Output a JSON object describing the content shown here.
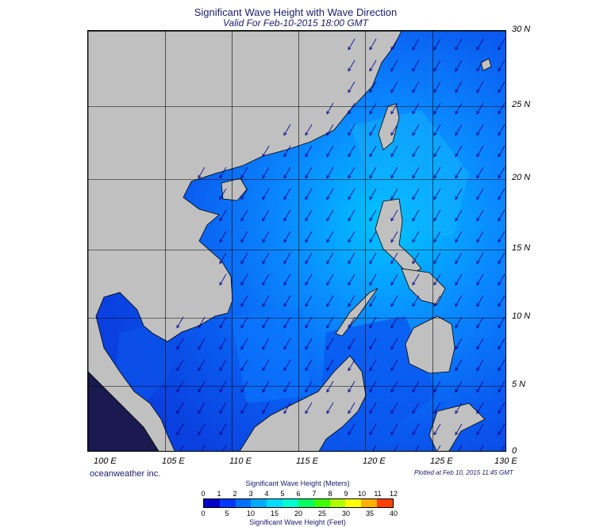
{
  "title": "Significant Wave Height with Wave Direction",
  "subtitle": "Valid For Feb-10-2015 18:00 GMT",
  "credit": "oceanweather inc.",
  "plotted": "Plotted at Feb 10, 2015 11:45 GMT",
  "map": {
    "lon_range": [
      99,
      130
    ],
    "lat_range": [
      0,
      30
    ],
    "lat_labels": [
      "30 N",
      "25 N",
      "20 N",
      "15 N",
      "10 N",
      "5 N",
      "0"
    ],
    "lon_labels": [
      "100 E",
      "105 E",
      "110 E",
      "115 E",
      "120 E",
      "125 E",
      "130 E"
    ],
    "land_color": "#c0c0c0",
    "wave_direction": "northeast (arrows point to southwest)"
  },
  "legend": {
    "meters_title": "Significant Wave Height (Meters)",
    "feet_title": "Significant Wave Height (Feet)",
    "meters_ticks": [
      "0",
      "1",
      "2",
      "3",
      "4",
      "5",
      "6",
      "7",
      "8",
      "9",
      "10",
      "11",
      "12"
    ],
    "feet_ticks": [
      "0",
      "5",
      "10",
      "15",
      "20",
      "25",
      "30",
      "35",
      "40"
    ],
    "colors": [
      "#0000c8",
      "#0038ff",
      "#0070ff",
      "#00aaff",
      "#00dcff",
      "#00ffd0",
      "#00ff60",
      "#40ff00",
      "#b0ff00",
      "#ffff00",
      "#ffb000",
      "#ff4000"
    ]
  }
}
